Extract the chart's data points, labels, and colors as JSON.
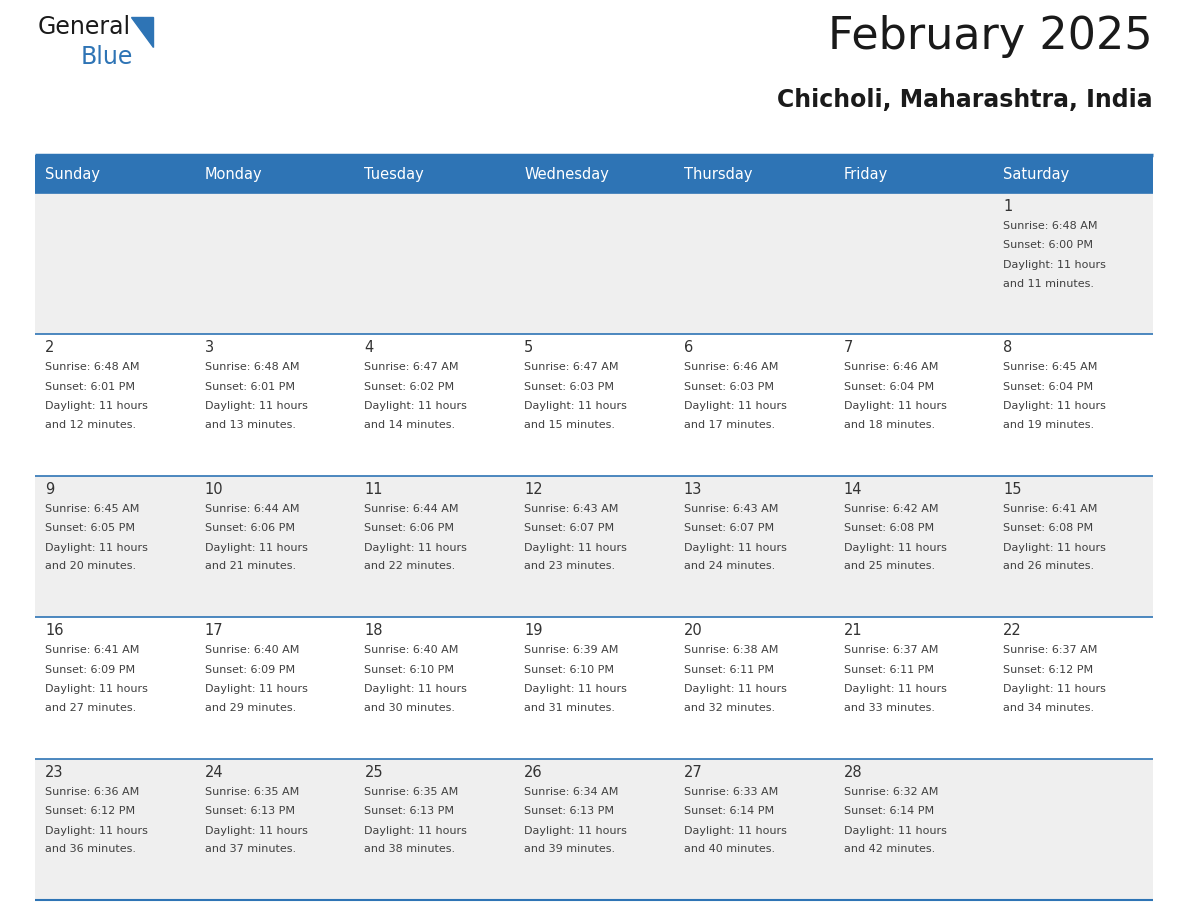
{
  "title": "February 2025",
  "subtitle": "Chicholi, Maharashtra, India",
  "days_of_week": [
    "Sunday",
    "Monday",
    "Tuesday",
    "Wednesday",
    "Thursday",
    "Friday",
    "Saturday"
  ],
  "header_bg": "#2E74B5",
  "header_text": "#FFFFFF",
  "row_bg_odd": "#EFEFEF",
  "row_bg_even": "#FFFFFF",
  "separator_color": "#2E74B5",
  "text_color": "#404040",
  "day_number_color": "#333333",
  "calendar_data": [
    {
      "day": 1,
      "col": 6,
      "row": 0,
      "sunrise": "6:48 AM",
      "sunset": "6:00 PM",
      "daylight": "11 hours and 11 minutes"
    },
    {
      "day": 2,
      "col": 0,
      "row": 1,
      "sunrise": "6:48 AM",
      "sunset": "6:01 PM",
      "daylight": "11 hours and 12 minutes"
    },
    {
      "day": 3,
      "col": 1,
      "row": 1,
      "sunrise": "6:48 AM",
      "sunset": "6:01 PM",
      "daylight": "11 hours and 13 minutes"
    },
    {
      "day": 4,
      "col": 2,
      "row": 1,
      "sunrise": "6:47 AM",
      "sunset": "6:02 PM",
      "daylight": "11 hours and 14 minutes"
    },
    {
      "day": 5,
      "col": 3,
      "row": 1,
      "sunrise": "6:47 AM",
      "sunset": "6:03 PM",
      "daylight": "11 hours and 15 minutes"
    },
    {
      "day": 6,
      "col": 4,
      "row": 1,
      "sunrise": "6:46 AM",
      "sunset": "6:03 PM",
      "daylight": "11 hours and 17 minutes"
    },
    {
      "day": 7,
      "col": 5,
      "row": 1,
      "sunrise": "6:46 AM",
      "sunset": "6:04 PM",
      "daylight": "11 hours and 18 minutes"
    },
    {
      "day": 8,
      "col": 6,
      "row": 1,
      "sunrise": "6:45 AM",
      "sunset": "6:04 PM",
      "daylight": "11 hours and 19 minutes"
    },
    {
      "day": 9,
      "col": 0,
      "row": 2,
      "sunrise": "6:45 AM",
      "sunset": "6:05 PM",
      "daylight": "11 hours and 20 minutes"
    },
    {
      "day": 10,
      "col": 1,
      "row": 2,
      "sunrise": "6:44 AM",
      "sunset": "6:06 PM",
      "daylight": "11 hours and 21 minutes"
    },
    {
      "day": 11,
      "col": 2,
      "row": 2,
      "sunrise": "6:44 AM",
      "sunset": "6:06 PM",
      "daylight": "11 hours and 22 minutes"
    },
    {
      "day": 12,
      "col": 3,
      "row": 2,
      "sunrise": "6:43 AM",
      "sunset": "6:07 PM",
      "daylight": "11 hours and 23 minutes"
    },
    {
      "day": 13,
      "col": 4,
      "row": 2,
      "sunrise": "6:43 AM",
      "sunset": "6:07 PM",
      "daylight": "11 hours and 24 minutes"
    },
    {
      "day": 14,
      "col": 5,
      "row": 2,
      "sunrise": "6:42 AM",
      "sunset": "6:08 PM",
      "daylight": "11 hours and 25 minutes"
    },
    {
      "day": 15,
      "col": 6,
      "row": 2,
      "sunrise": "6:41 AM",
      "sunset": "6:08 PM",
      "daylight": "11 hours and 26 minutes"
    },
    {
      "day": 16,
      "col": 0,
      "row": 3,
      "sunrise": "6:41 AM",
      "sunset": "6:09 PM",
      "daylight": "11 hours and 27 minutes"
    },
    {
      "day": 17,
      "col": 1,
      "row": 3,
      "sunrise": "6:40 AM",
      "sunset": "6:09 PM",
      "daylight": "11 hours and 29 minutes"
    },
    {
      "day": 18,
      "col": 2,
      "row": 3,
      "sunrise": "6:40 AM",
      "sunset": "6:10 PM",
      "daylight": "11 hours and 30 minutes"
    },
    {
      "day": 19,
      "col": 3,
      "row": 3,
      "sunrise": "6:39 AM",
      "sunset": "6:10 PM",
      "daylight": "11 hours and 31 minutes"
    },
    {
      "day": 20,
      "col": 4,
      "row": 3,
      "sunrise": "6:38 AM",
      "sunset": "6:11 PM",
      "daylight": "11 hours and 32 minutes"
    },
    {
      "day": 21,
      "col": 5,
      "row": 3,
      "sunrise": "6:37 AM",
      "sunset": "6:11 PM",
      "daylight": "11 hours and 33 minutes"
    },
    {
      "day": 22,
      "col": 6,
      "row": 3,
      "sunrise": "6:37 AM",
      "sunset": "6:12 PM",
      "daylight": "11 hours and 34 minutes"
    },
    {
      "day": 23,
      "col": 0,
      "row": 4,
      "sunrise": "6:36 AM",
      "sunset": "6:12 PM",
      "daylight": "11 hours and 36 minutes"
    },
    {
      "day": 24,
      "col": 1,
      "row": 4,
      "sunrise": "6:35 AM",
      "sunset": "6:13 PM",
      "daylight": "11 hours and 37 minutes"
    },
    {
      "day": 25,
      "col": 2,
      "row": 4,
      "sunrise": "6:35 AM",
      "sunset": "6:13 PM",
      "daylight": "11 hours and 38 minutes"
    },
    {
      "day": 26,
      "col": 3,
      "row": 4,
      "sunrise": "6:34 AM",
      "sunset": "6:13 PM",
      "daylight": "11 hours and 39 minutes"
    },
    {
      "day": 27,
      "col": 4,
      "row": 4,
      "sunrise": "6:33 AM",
      "sunset": "6:14 PM",
      "daylight": "11 hours and 40 minutes"
    },
    {
      "day": 28,
      "col": 5,
      "row": 4,
      "sunrise": "6:32 AM",
      "sunset": "6:14 PM",
      "daylight": "11 hours and 42 minutes"
    }
  ],
  "num_rows": 5,
  "logo_text_general": "General",
  "logo_text_blue": "Blue",
  "logo_color_general": "#1a1a1a",
  "logo_color_blue": "#2E74B5",
  "logo_triangle_color": "#2E74B5",
  "fig_width": 11.88,
  "fig_height": 9.18,
  "dpi": 100
}
